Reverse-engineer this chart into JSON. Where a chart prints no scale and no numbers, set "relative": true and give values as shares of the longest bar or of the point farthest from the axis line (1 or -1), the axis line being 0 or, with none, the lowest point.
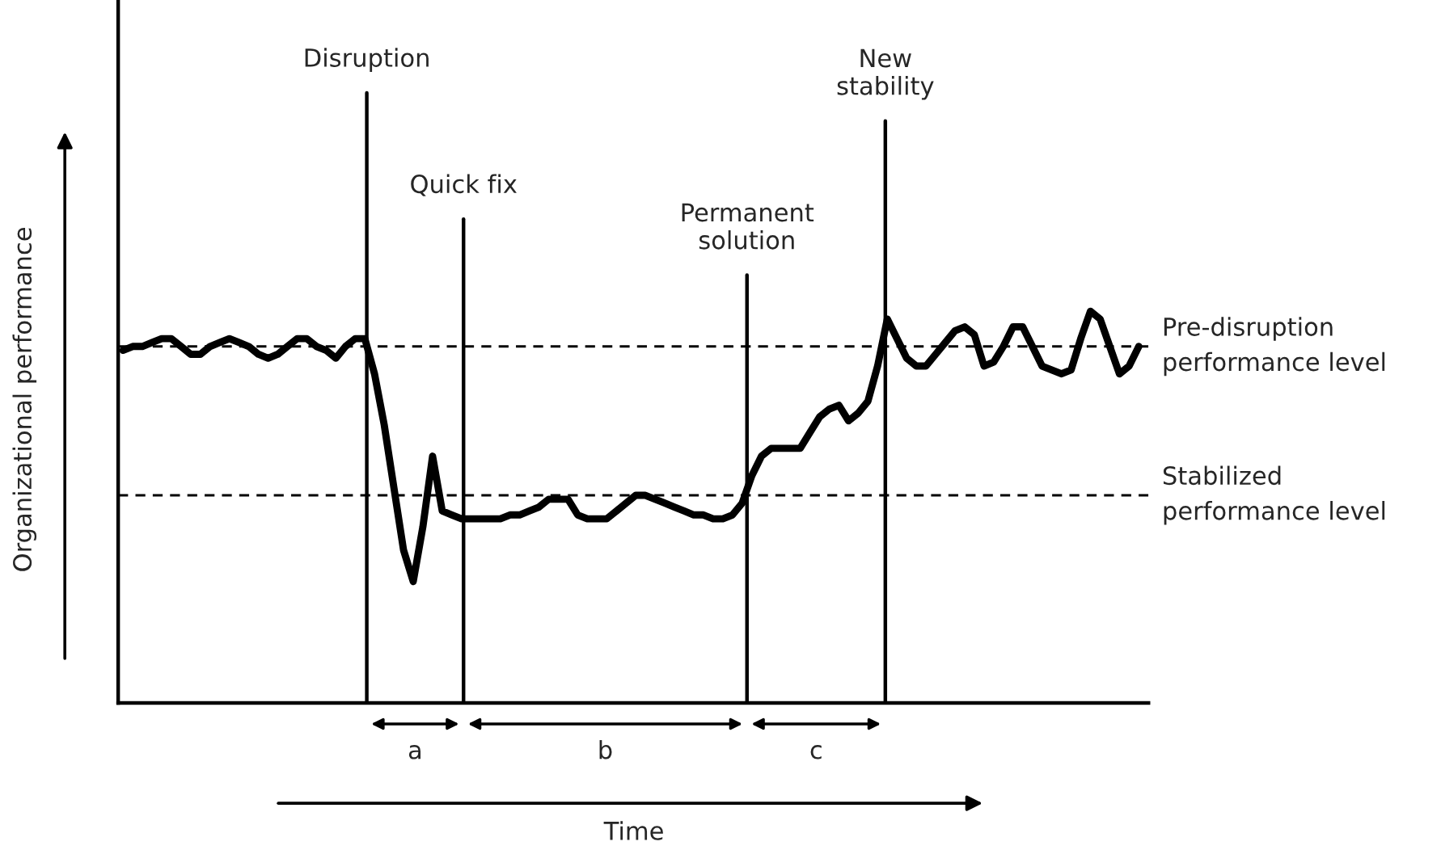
{
  "chart_data": {
    "type": "line",
    "relative": true,
    "tick_labels": false,
    "grid": false,
    "legend": false,
    "line_style": "solid",
    "xlabel": "Time",
    "ylabel": "Organizational performance",
    "categories": [
      null,
      null,
      null,
      null,
      null,
      null,
      null,
      null,
      null,
      null,
      null,
      null,
      null,
      null,
      null,
      null,
      null,
      null,
      null,
      null,
      null,
      null,
      null,
      null,
      null,
      null,
      null,
      null,
      null,
      null,
      null,
      null,
      null,
      null,
      null,
      null,
      null,
      null,
      null,
      null,
      null,
      null,
      null,
      null,
      null,
      null,
      null,
      null,
      null,
      null,
      null,
      null,
      null,
      null,
      null,
      null,
      null,
      null,
      null,
      null,
      null,
      null,
      null,
      null,
      null,
      null,
      null,
      null,
      null,
      null,
      null,
      null,
      null,
      null,
      null,
      null,
      null,
      null,
      null,
      null,
      null,
      null,
      null,
      null,
      null,
      null,
      null,
      null,
      null,
      null,
      null,
      null,
      null,
      null,
      null,
      null,
      null,
      null,
      null,
      null,
      null,
      null,
      null,
      null,
      null,
      null
    ],
    "series": [
      {
        "color": "#000000",
        "values": [
          0.9,
          0.91,
          0.91,
          0.92,
          0.93,
          0.93,
          0.91,
          0.89,
          0.89,
          0.91,
          0.92,
          0.93,
          0.92,
          0.91,
          0.89,
          0.88,
          0.89,
          0.91,
          0.93,
          0.93,
          0.91,
          0.9,
          0.88,
          0.91,
          0.93,
          0.93,
          0.84,
          0.71,
          0.55,
          0.39,
          0.31,
          0.45,
          0.63,
          0.49,
          0.48,
          0.47,
          0.47,
          0.47,
          0.47,
          0.47,
          0.48,
          0.48,
          0.49,
          0.5,
          0.52,
          0.52,
          0.52,
          0.48,
          0.47,
          0.47,
          0.47,
          0.49,
          0.51,
          0.53,
          0.53,
          0.52,
          0.51,
          0.5,
          0.49,
          0.48,
          0.48,
          0.47,
          0.47,
          0.48,
          0.51,
          0.58,
          0.63,
          0.65,
          0.65,
          0.65,
          0.65,
          0.69,
          0.73,
          0.75,
          0.76,
          0.72,
          0.74,
          0.77,
          0.86,
          0.98,
          0.93,
          0.88,
          0.86,
          0.86,
          0.89,
          0.92,
          0.95,
          0.96,
          0.94,
          0.86,
          0.87,
          0.91,
          0.96,
          0.96,
          0.91,
          0.86,
          0.85,
          0.84,
          0.85,
          0.93,
          1.0,
          0.98,
          0.91,
          0.84,
          0.86,
          0.91
        ]
      }
    ],
    "ref_lines": [
      {
        "axis": "y",
        "value": 0.91,
        "label": "Pre-disruption\nperformance level",
        "color": "#000000",
        "line_style": "dashed"
      },
      {
        "axis": "y",
        "value": 0.53,
        "label": "Stabilized\nperformance level",
        "color": "#000000",
        "line_style": "dashed"
      }
    ],
    "annotations": [
      "Disruption",
      "Quick fix",
      "Permanent\nsolution",
      "New\nstability",
      "a",
      "b",
      "c"
    ]
  }
}
